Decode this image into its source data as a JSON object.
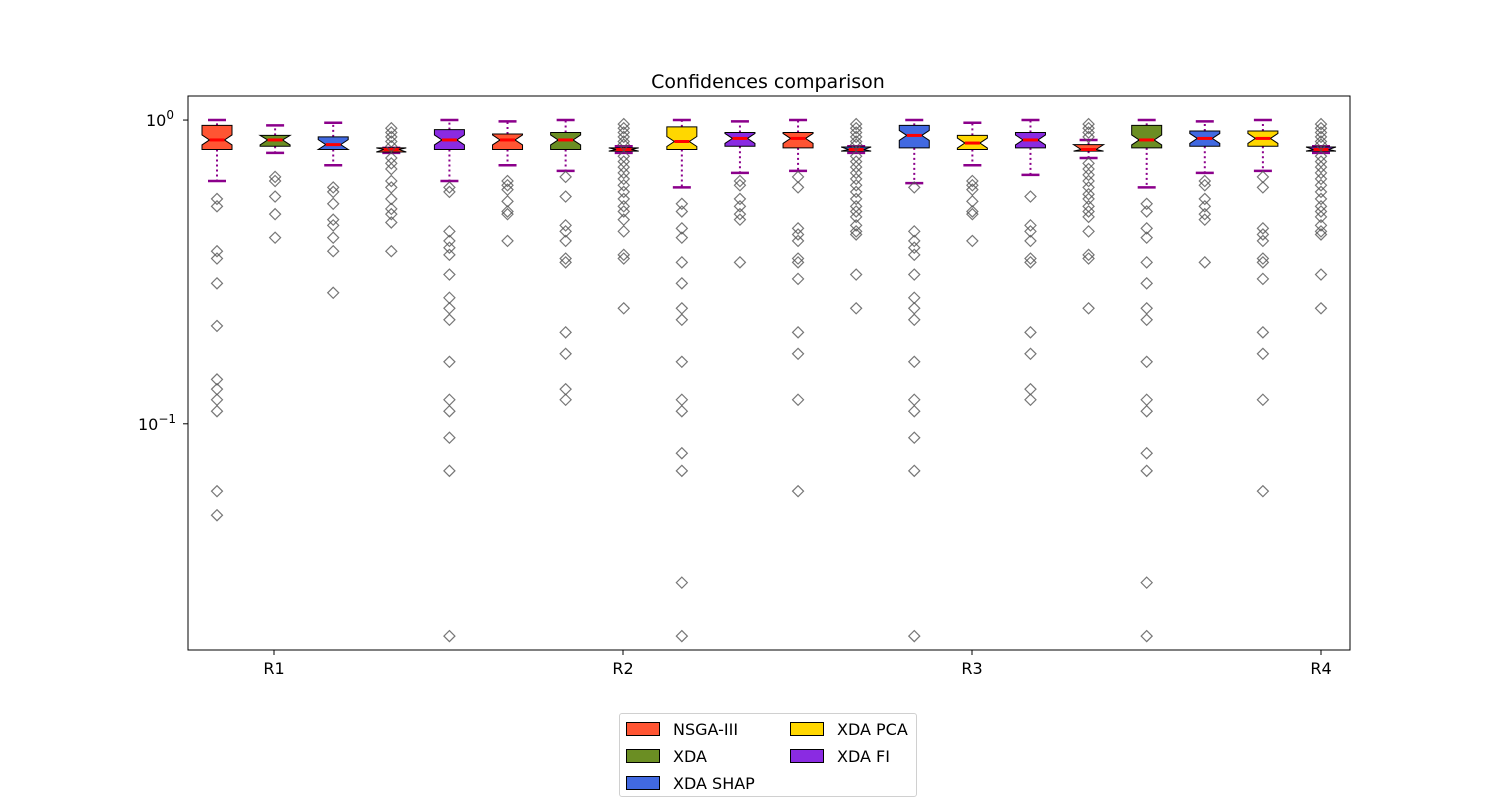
{
  "chart_data": {
    "type": "box",
    "title": "Confidences comparison",
    "xlabel": "",
    "ylabel": "",
    "yscale": "log",
    "ylim": [
      0.018,
      1.2
    ],
    "ytick_values": [
      0.1,
      1.0
    ],
    "ytick_labels": {
      "base": "10",
      "exponents": [
        "−1",
        "0"
      ]
    },
    "categories": [
      "R1",
      "R2",
      "R3",
      "R4"
    ],
    "notched": true,
    "grid": false,
    "legend_position": "bottom-center",
    "legend": [
      {
        "name": "NSGA-III",
        "color": "#ff5533"
      },
      {
        "name": "XDA",
        "color": "#6b8e23"
      },
      {
        "name": "XDA SHAP",
        "color": "#4169e1"
      },
      {
        "name": "XDA PCA",
        "color": "#ffd700"
      },
      {
        "name": "XDA FI",
        "color": "#8a2be2"
      }
    ],
    "boxes": [
      {
        "method": "NSGA-III",
        "q1": 0.8,
        "median": 0.86,
        "q3": 0.96,
        "whislo": 0.63,
        "whishi": 1.0,
        "outliers": [
          0.55,
          0.52,
          0.37,
          0.35,
          0.29,
          0.21,
          0.14,
          0.13,
          0.12,
          0.11,
          0.06,
          0.05
        ]
      },
      {
        "method": "XDA",
        "q1": 0.82,
        "median": 0.86,
        "q3": 0.89,
        "whislo": 0.78,
        "whishi": 0.96,
        "outliers": [
          0.65,
          0.63,
          0.56,
          0.49,
          0.41
        ]
      },
      {
        "method": "XDA SHAP",
        "q1": 0.8,
        "median": 0.83,
        "q3": 0.88,
        "whislo": 0.71,
        "whishi": 0.98,
        "outliers": [
          0.6,
          0.58,
          0.53,
          0.47,
          0.45,
          0.41,
          0.37,
          0.27
        ]
      },
      {
        "method": "NSGA-III",
        "q1": 0.785,
        "median": 0.8,
        "q3": 0.81,
        "whislo": 0.78,
        "whishi": 0.81,
        "outliers": [
          0.94,
          0.91,
          0.88,
          0.85,
          0.82,
          0.75,
          0.72,
          0.69,
          0.63,
          0.6,
          0.55,
          0.51,
          0.49,
          0.46,
          0.37
        ]
      },
      {
        "method": "XDA FI",
        "q1": 0.8,
        "median": 0.86,
        "q3": 0.93,
        "whislo": 0.63,
        "whishi": 1.0,
        "outliers": [
          0.6,
          0.58,
          0.43,
          0.4,
          0.38,
          0.36,
          0.31,
          0.26,
          0.24,
          0.22,
          0.16,
          0.12,
          0.11,
          0.09,
          0.07,
          0.02
        ]
      },
      {
        "method": "NSGA-III",
        "q1": 0.8,
        "median": 0.86,
        "q3": 0.9,
        "whislo": 0.71,
        "whishi": 0.99,
        "outliers": [
          0.63,
          0.61,
          0.59,
          0.54,
          0.5,
          0.49,
          0.4
        ]
      },
      {
        "method": "XDA",
        "q1": 0.8,
        "median": 0.86,
        "q3": 0.91,
        "whislo": 0.68,
        "whishi": 1.0,
        "outliers": [
          0.65,
          0.56,
          0.45,
          0.43,
          0.4,
          0.35,
          0.34,
          0.2,
          0.17,
          0.13,
          0.12
        ]
      },
      {
        "method": "NSGA-III",
        "q1": 0.79,
        "median": 0.8,
        "q3": 0.81,
        "whislo": 0.78,
        "whishi": 0.82,
        "outliers": [
          0.97,
          0.94,
          0.91,
          0.88,
          0.85,
          0.83,
          0.76,
          0.73,
          0.7,
          0.67,
          0.64,
          0.61,
          0.58,
          0.55,
          0.52,
          0.5,
          0.47,
          0.43,
          0.36,
          0.35,
          0.24
        ]
      },
      {
        "method": "XDA PCA",
        "q1": 0.8,
        "median": 0.85,
        "q3": 0.95,
        "whislo": 0.6,
        "whishi": 1.0,
        "outliers": [
          0.53,
          0.5,
          0.44,
          0.41,
          0.34,
          0.29,
          0.24,
          0.22,
          0.16,
          0.12,
          0.11,
          0.08,
          0.07,
          0.03,
          0.02
        ]
      },
      {
        "method": "XDA FI",
        "q1": 0.82,
        "median": 0.87,
        "q3": 0.91,
        "whislo": 0.67,
        "whishi": 0.99,
        "outliers": [
          0.63,
          0.61,
          0.55,
          0.52,
          0.49,
          0.47,
          0.34
        ]
      },
      {
        "method": "NSGA-III",
        "q1": 0.81,
        "median": 0.87,
        "q3": 0.91,
        "whislo": 0.68,
        "whishi": 1.0,
        "outliers": [
          0.65,
          0.6,
          0.44,
          0.42,
          0.4,
          0.35,
          0.34,
          0.3,
          0.2,
          0.17,
          0.12,
          0.06
        ]
      },
      {
        "method": "XDA SHAP",
        "q1": 0.79,
        "median": 0.8,
        "q3": 0.815,
        "whislo": 0.78,
        "whishi": 0.82,
        "outliers": [
          0.97,
          0.94,
          0.91,
          0.88,
          0.85,
          0.83,
          0.76,
          0.73,
          0.7,
          0.67,
          0.64,
          0.61,
          0.58,
          0.55,
          0.52,
          0.5,
          0.48,
          0.45,
          0.43,
          0.42,
          0.31,
          0.24
        ]
      },
      {
        "method": "XDA SHAP",
        "q1": 0.81,
        "median": 0.89,
        "q3": 0.96,
        "whislo": 0.62,
        "whishi": 1.0,
        "outliers": [
          0.6,
          0.43,
          0.4,
          0.38,
          0.36,
          0.31,
          0.26,
          0.24,
          0.22,
          0.16,
          0.12,
          0.11,
          0.09,
          0.07,
          0.02
        ]
      },
      {
        "method": "XDA PCA",
        "q1": 0.8,
        "median": 0.84,
        "q3": 0.89,
        "whislo": 0.71,
        "whishi": 0.98,
        "outliers": [
          0.63,
          0.61,
          0.59,
          0.54,
          0.5,
          0.49,
          0.4
        ]
      },
      {
        "method": "XDA FI",
        "q1": 0.81,
        "median": 0.86,
        "q3": 0.91,
        "whislo": 0.66,
        "whishi": 1.0,
        "outliers": [
          0.56,
          0.45,
          0.43,
          0.4,
          0.35,
          0.34,
          0.2,
          0.17,
          0.13,
          0.12
        ]
      },
      {
        "method": "NSGA-III",
        "q1": 0.79,
        "median": 0.8,
        "q3": 0.83,
        "whislo": 0.75,
        "whishi": 0.86,
        "outliers": [
          0.97,
          0.94,
          0.91,
          0.88,
          0.72,
          0.69,
          0.66,
          0.63,
          0.6,
          0.57,
          0.55,
          0.52,
          0.5,
          0.48,
          0.43,
          0.36,
          0.35,
          0.24
        ]
      },
      {
        "method": "XDA",
        "q1": 0.81,
        "median": 0.86,
        "q3": 0.96,
        "whislo": 0.6,
        "whishi": 1.0,
        "outliers": [
          0.53,
          0.5,
          0.44,
          0.41,
          0.34,
          0.29,
          0.24,
          0.22,
          0.16,
          0.12,
          0.11,
          0.08,
          0.07,
          0.03,
          0.02
        ]
      },
      {
        "method": "XDA SHAP",
        "q1": 0.82,
        "median": 0.87,
        "q3": 0.92,
        "whislo": 0.67,
        "whishi": 0.99,
        "outliers": [
          0.63,
          0.61,
          0.55,
          0.52,
          0.49,
          0.47,
          0.34
        ]
      },
      {
        "method": "XDA PCA",
        "q1": 0.82,
        "median": 0.87,
        "q3": 0.92,
        "whislo": 0.68,
        "whishi": 1.0,
        "outliers": [
          0.65,
          0.6,
          0.44,
          0.42,
          0.4,
          0.35,
          0.34,
          0.3,
          0.2,
          0.17,
          0.12,
          0.06
        ]
      },
      {
        "method": "XDA FI",
        "q1": 0.79,
        "median": 0.8,
        "q3": 0.815,
        "whislo": 0.78,
        "whishi": 0.82,
        "outliers": [
          0.97,
          0.94,
          0.91,
          0.88,
          0.85,
          0.83,
          0.76,
          0.73,
          0.7,
          0.67,
          0.64,
          0.61,
          0.58,
          0.55,
          0.52,
          0.5,
          0.48,
          0.45,
          0.43,
          0.42,
          0.31,
          0.24
        ]
      }
    ],
    "box_style": {
      "edge_color": "#000000",
      "median_color": "#ff0000",
      "whisker_color": "#8b008b",
      "whisker_style": "dotted",
      "flier_marker": "diamond",
      "flier_color": "#555555"
    }
  }
}
